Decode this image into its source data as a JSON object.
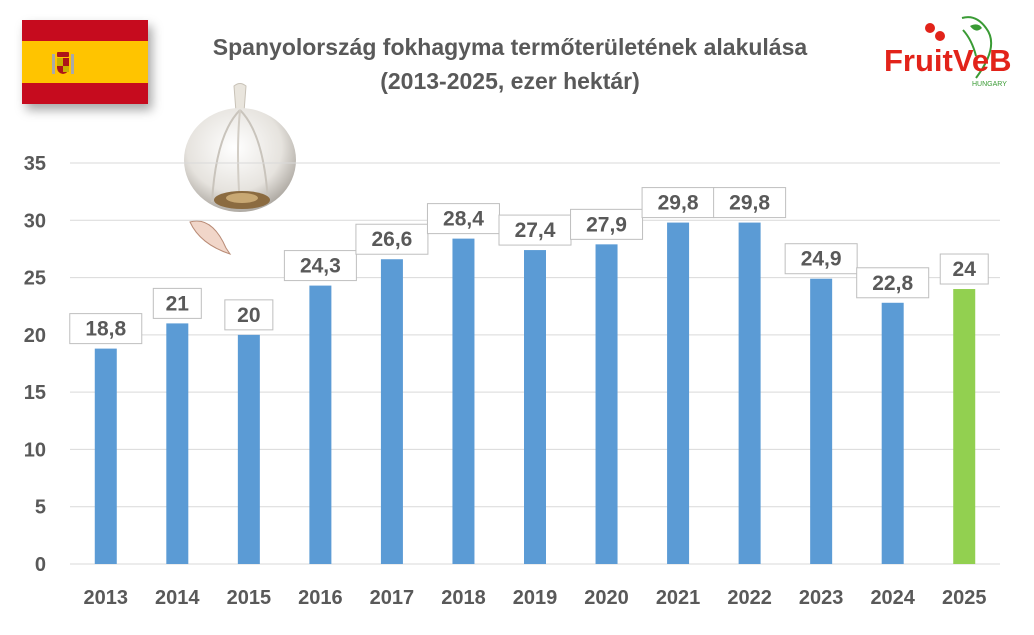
{
  "title_line1": "Spanyolország fokhagyma termőterületének alakulása",
  "title_line2": "(2013-2025, ezer hektár)",
  "logo": {
    "main": "FruitVeB",
    "sub": "HUNGARY"
  },
  "colors": {
    "bar": "#5b9bd5",
    "highlight": "#92d050",
    "text": "#595959",
    "grid": "#d9d9d9",
    "logo_red": "#e2231a",
    "logo_green": "#3a9b35"
  },
  "chart_data": {
    "type": "bar",
    "title": "Spanyolország fokhagyma termőterületének alakulása (2013-2025, ezer hektár)",
    "categories": [
      "2013",
      "2014",
      "2015",
      "2016",
      "2017",
      "2018",
      "2019",
      "2020",
      "2021",
      "2022",
      "2023",
      "2024",
      "2025"
    ],
    "values": [
      18.8,
      21,
      20,
      24.3,
      26.6,
      28.4,
      27.4,
      27.9,
      29.8,
      29.8,
      24.9,
      22.8,
      24
    ],
    "data_labels": [
      "18,8",
      "21",
      "20",
      "24,3",
      "26,6",
      "28,4",
      "27,4",
      "27,9",
      "29,8",
      "29,8",
      "24,9",
      "22,8",
      "24"
    ],
    "highlight_categories": [
      "2025"
    ],
    "yticks": [
      "0",
      "5",
      "10",
      "15",
      "20",
      "25",
      "30",
      "35"
    ],
    "ylim": [
      0,
      35
    ],
    "grid": true,
    "legend": "none"
  }
}
